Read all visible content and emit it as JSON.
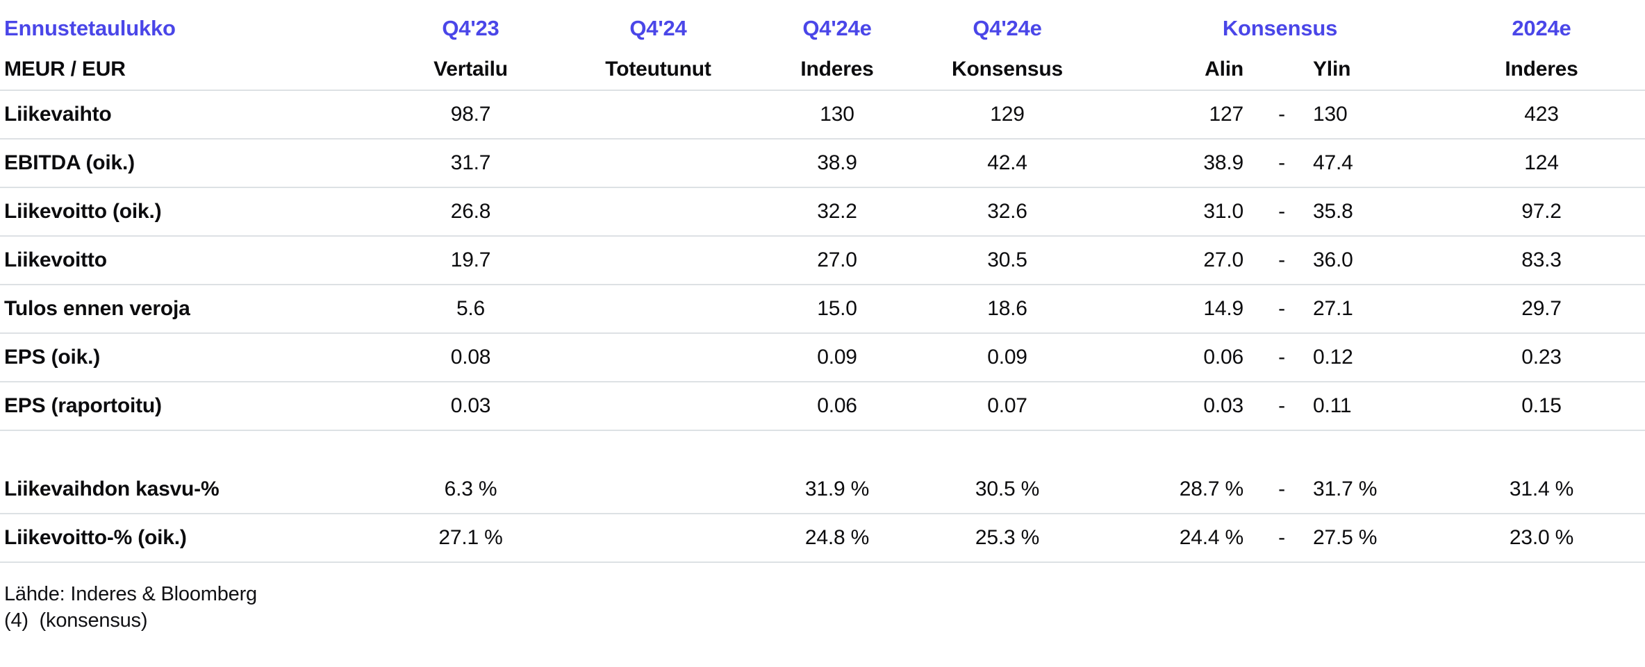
{
  "accent_color": "#4a46e8",
  "divider_color": "#dde1e4",
  "table": {
    "title": "Ennustetaulukko",
    "unit_label": "MEUR / EUR",
    "range_separator": "-",
    "header_top": {
      "q4_23": "Q4'23",
      "q4_24": "Q4'24",
      "q4_24e_inderes": "Q4'24e",
      "q4_24e_konsensus": "Q4'24e",
      "konsensus_span": "Konsensus",
      "y2024e": "2024e"
    },
    "header_sub": {
      "vertailu": "Vertailu",
      "toteutunut": "Toteutunut",
      "inderes": "Inderes",
      "konsensus": "Konsensus",
      "alin": "Alin",
      "ylin": "Ylin",
      "inderes_2024e": "Inderes"
    },
    "rows": [
      {
        "label": "Liikevaihto",
        "vertailu": "98.7",
        "toteutunut": "",
        "inderes": "130",
        "konsensus": "129",
        "alin": "127",
        "ylin": "130",
        "inderes_2024e": "423"
      },
      {
        "label": "EBITDA (oik.)",
        "vertailu": "31.7",
        "toteutunut": "",
        "inderes": "38.9",
        "konsensus": "42.4",
        "alin": "38.9",
        "ylin": "47.4",
        "inderes_2024e": "124"
      },
      {
        "label": "Liikevoitto (oik.)",
        "vertailu": "26.8",
        "toteutunut": "",
        "inderes": "32.2",
        "konsensus": "32.6",
        "alin": "31.0",
        "ylin": "35.8",
        "inderes_2024e": "97.2"
      },
      {
        "label": "Liikevoitto",
        "vertailu": "19.7",
        "toteutunut": "",
        "inderes": "27.0",
        "konsensus": "30.5",
        "alin": "27.0",
        "ylin": "36.0",
        "inderes_2024e": "83.3"
      },
      {
        "label": "Tulos ennen veroja",
        "vertailu": "5.6",
        "toteutunut": "",
        "inderes": "15.0",
        "konsensus": "18.6",
        "alin": "14.9",
        "ylin": "27.1",
        "inderes_2024e": "29.7"
      },
      {
        "label": "EPS (oik.)",
        "vertailu": "0.08",
        "toteutunut": "",
        "inderes": "0.09",
        "konsensus": "0.09",
        "alin": "0.06",
        "ylin": "0.12",
        "inderes_2024e": "0.23"
      },
      {
        "label": "EPS (raportoitu)",
        "vertailu": "0.03",
        "toteutunut": "",
        "inderes": "0.06",
        "konsensus": "0.07",
        "alin": "0.03",
        "ylin": "0.11",
        "inderes_2024e": "0.15"
      },
      {
        "spacer": true
      },
      {
        "label": "Liikevaihdon kasvu-%",
        "vertailu": "6.3 %",
        "toteutunut": "",
        "inderes": "31.9 %",
        "konsensus": "30.5 %",
        "alin": "28.7 %",
        "ylin": "31.7 %",
        "inderes_2024e": "31.4 %"
      },
      {
        "label": "Liikevoitto-% (oik.)",
        "vertailu": "27.1 %",
        "toteutunut": "",
        "inderes": "24.8 %",
        "konsensus": "25.3 %",
        "alin": "24.4 %",
        "ylin": "27.5 %",
        "inderes_2024e": "23.0 %"
      }
    ]
  },
  "footer": {
    "source": "Lähde: Inderes & Bloomberg",
    "note": "(4)  (konsensus)"
  }
}
